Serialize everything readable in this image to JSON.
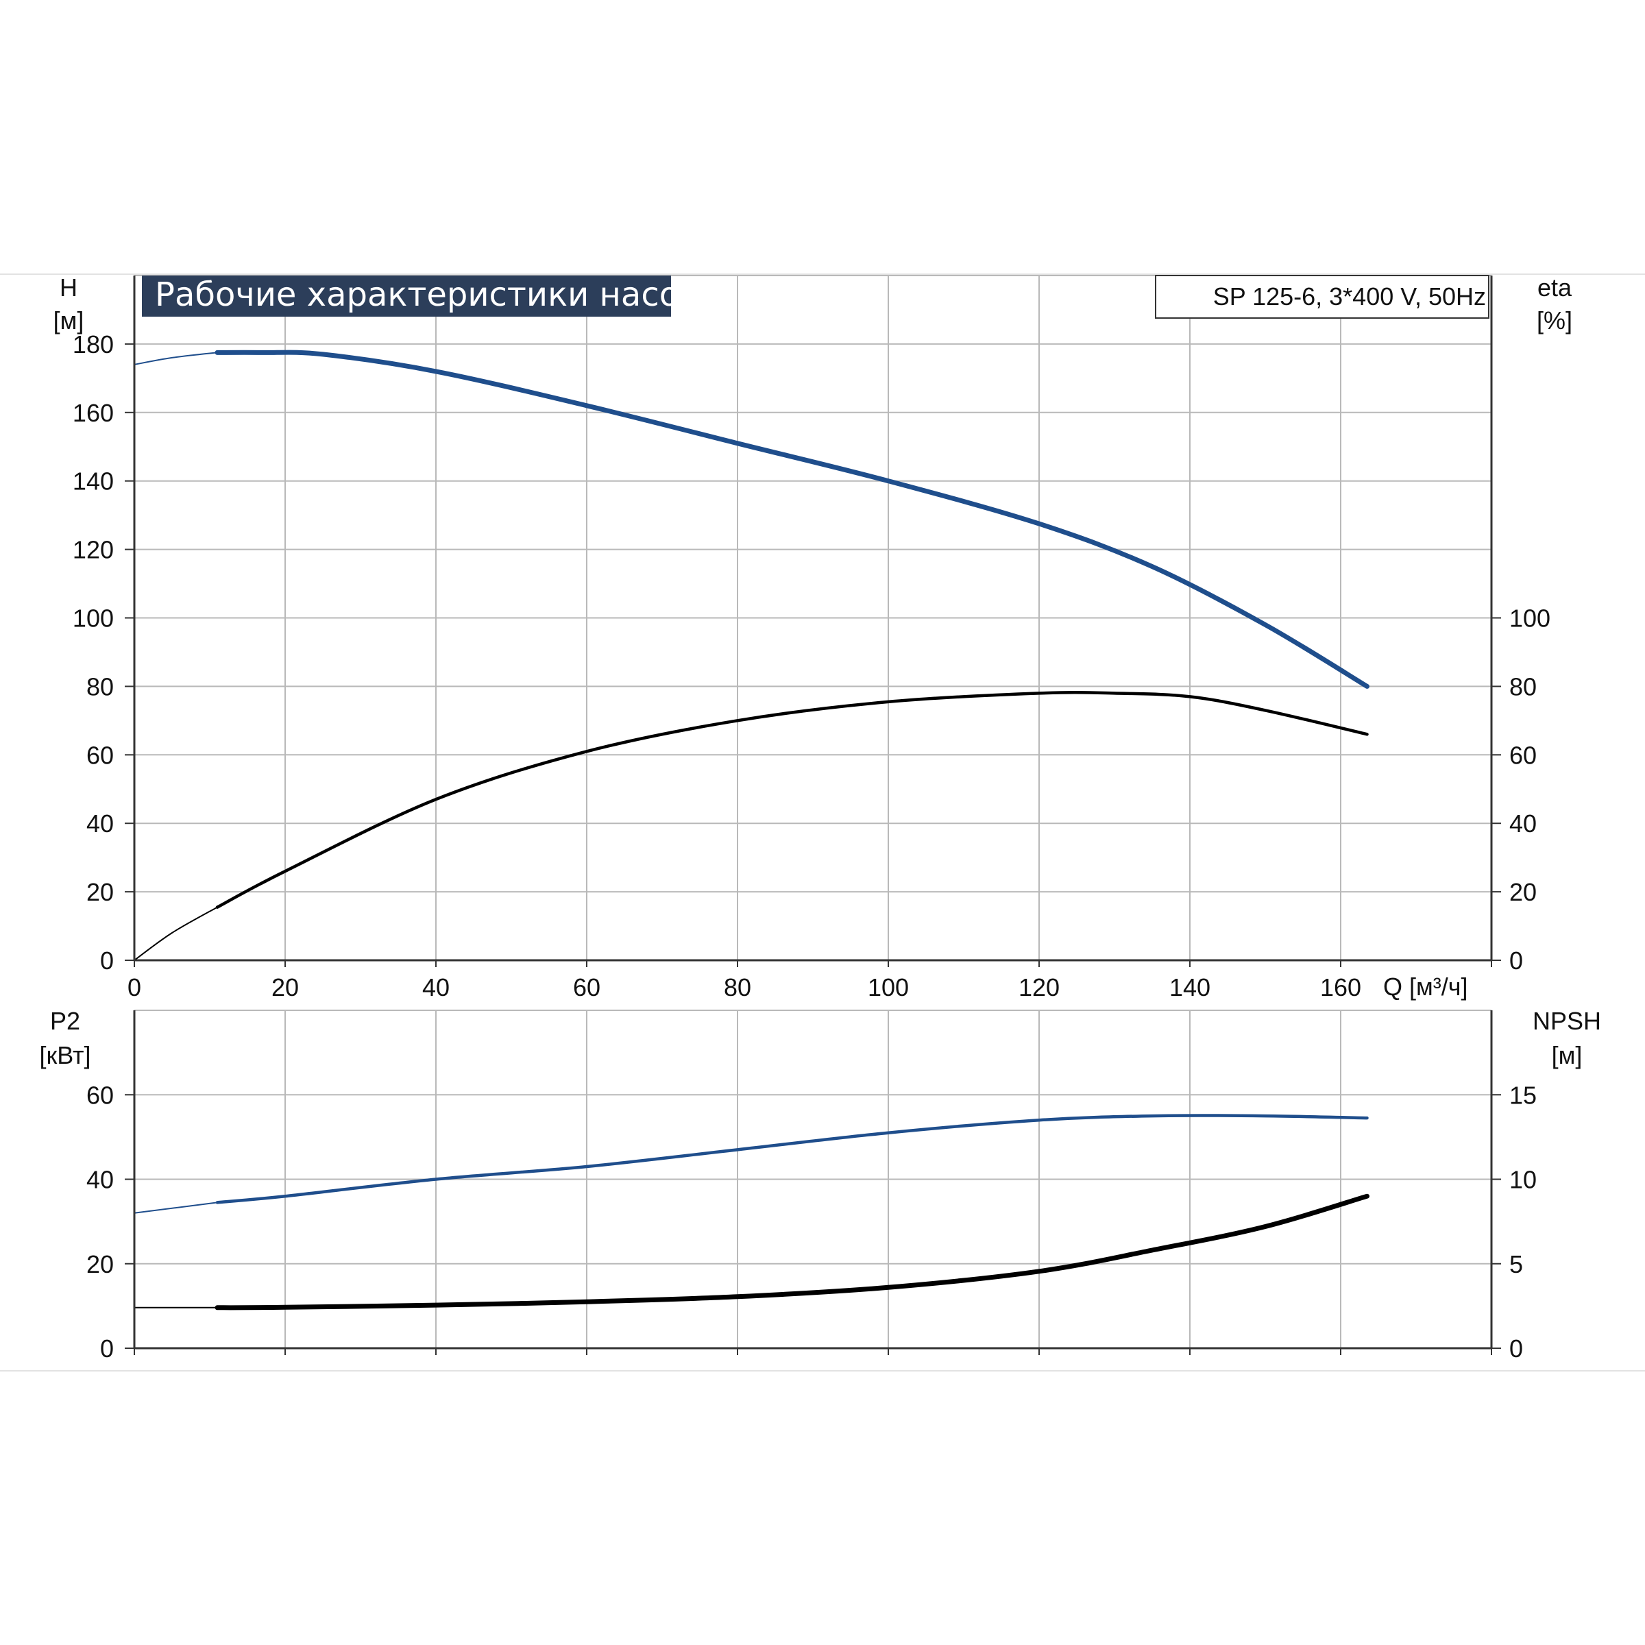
{
  "chart_data": [
    {
      "type": "line",
      "title": "Рабочие характеристики насоса",
      "model_label": "SP 125-6, 3*400 V, 50Hz",
      "x_axis": {
        "label": "Q [м³/ч]",
        "range": [
          0,
          180
        ],
        "ticks": [
          "0",
          "20",
          "40",
          "60",
          "80",
          "100",
          "120",
          "140",
          "160"
        ]
      },
      "y_axis_left": {
        "label_top": "H",
        "label_unit": "[м]",
        "range": [
          0,
          200
        ],
        "ticks": [
          "0",
          "20",
          "40",
          "60",
          "80",
          "100",
          "120",
          "140",
          "160",
          "180"
        ]
      },
      "y_axis_right": {
        "label_top": "eta",
        "label_unit": "[%]",
        "range": [
          0,
          200
        ],
        "ticks": [
          "0",
          "20",
          "40",
          "60",
          "80",
          "100"
        ]
      },
      "grid": true,
      "series": [
        {
          "axis": "left",
          "color": "#1f4e8c",
          "dashed_segment_end_x": 11,
          "x": [
            0,
            5,
            11,
            17,
            25,
            40,
            60,
            80,
            100,
            120,
            135,
            150,
            163.5
          ],
          "y": [
            174,
            176,
            177.5,
            177.5,
            177,
            172,
            162,
            151,
            140,
            127.5,
            115,
            98,
            80
          ]
        },
        {
          "axis": "right",
          "color": "#000000",
          "dashed_segment_end_x": 11,
          "x": [
            0,
            5,
            11,
            20,
            40,
            60,
            80,
            100,
            120,
            130,
            140,
            150,
            163.5
          ],
          "y": [
            0,
            8,
            15.5,
            26,
            47,
            61,
            70,
            75.5,
            78,
            78,
            77,
            73,
            66
          ]
        }
      ]
    },
    {
      "type": "line",
      "x_axis": {
        "range": [
          0,
          180
        ]
      },
      "y_axis_left": {
        "label_top": "P2",
        "label_unit": "[кВт]",
        "range": [
          0,
          80
        ],
        "ticks": [
          "0",
          "20",
          "40",
          "60"
        ]
      },
      "y_axis_right": {
        "label_top": "NPSH",
        "label_unit": "[м]",
        "range": [
          0,
          20
        ],
        "ticks": [
          "0",
          "5",
          "10",
          "15"
        ]
      },
      "grid": true,
      "series": [
        {
          "axis": "left",
          "color": "#1f4e8c",
          "dashed_segment_end_x": 11,
          "x": [
            0,
            11,
            20,
            40,
            60,
            80,
            100,
            120,
            135,
            150,
            163.5
          ],
          "y": [
            32,
            34.5,
            36,
            40,
            43,
            47,
            51,
            54,
            55,
            55,
            54.5
          ]
        },
        {
          "axis": "right",
          "color": "#000000",
          "dashed_segment_end_x": 11,
          "x": [
            0,
            11,
            20,
            40,
            60,
            80,
            100,
            120,
            135,
            150,
            163.5
          ],
          "y": [
            2.4,
            2.4,
            2.42,
            2.55,
            2.75,
            3.05,
            3.6,
            4.55,
            5.8,
            7.2,
            9
          ]
        }
      ]
    }
  ]
}
